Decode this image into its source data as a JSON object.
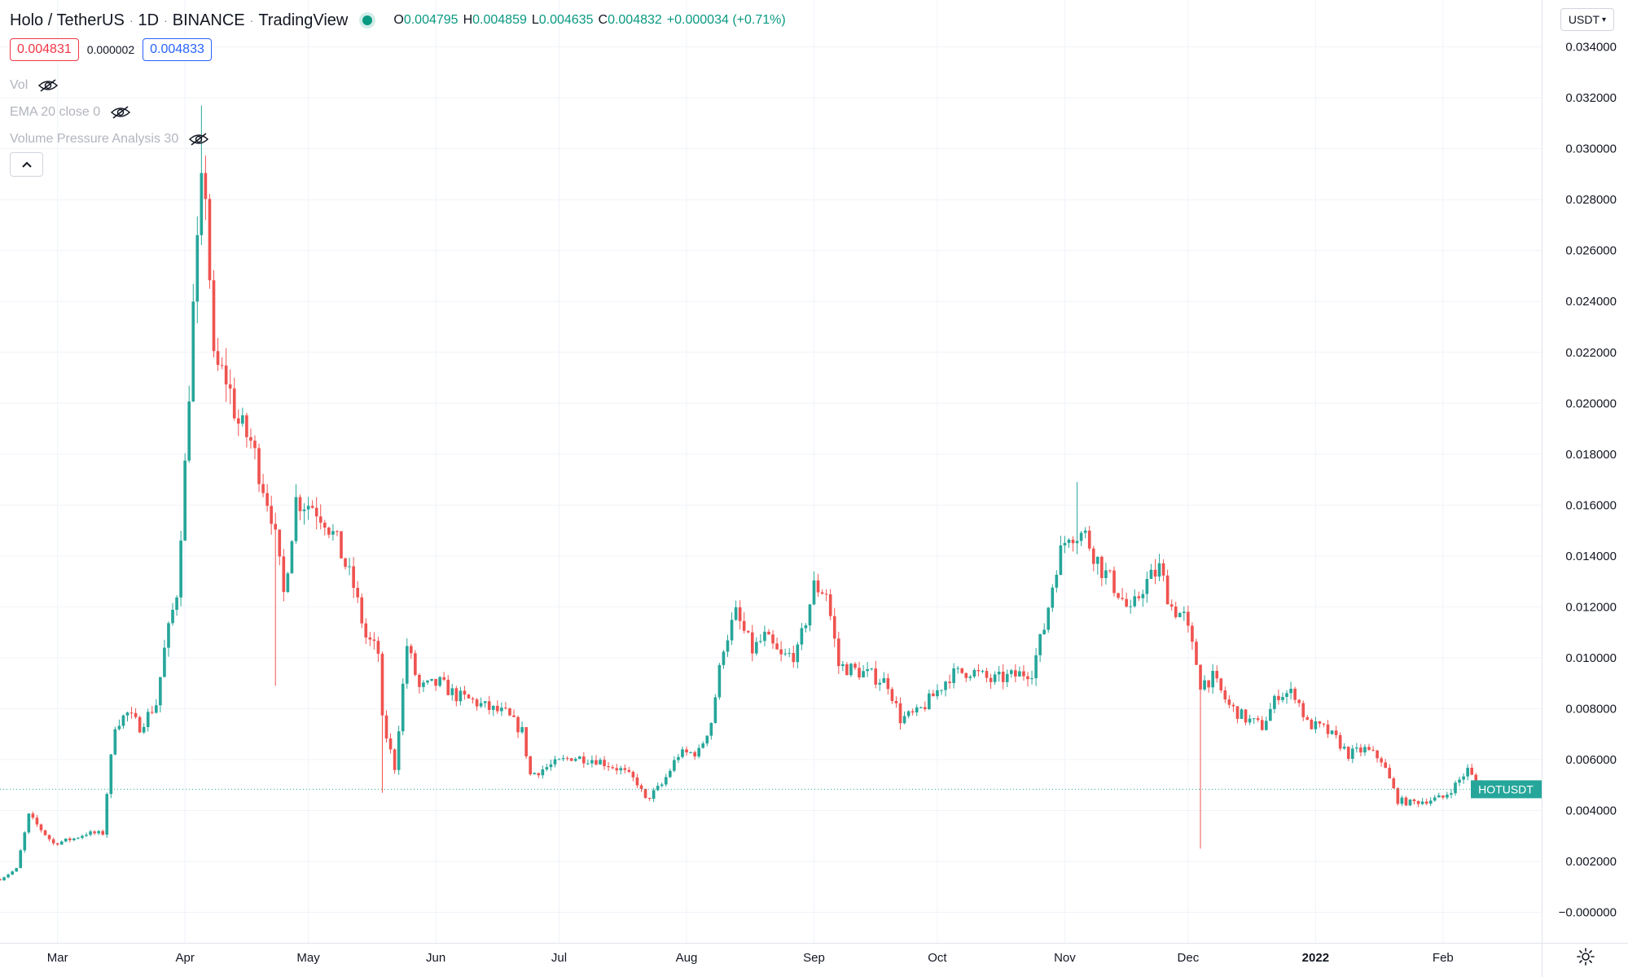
{
  "header": {
    "symbol": "Holo / TetherUS",
    "interval": "1D",
    "exchange": "BINANCE",
    "source": "TradingView",
    "ohlc": [
      {
        "key": "O",
        "value": "0.004795"
      },
      {
        "key": "H",
        "value": "0.004859"
      },
      {
        "key": "L",
        "value": "0.004635"
      },
      {
        "key": "C",
        "value": "0.004832"
      }
    ],
    "change": "+0.000034 (+0.71%)"
  },
  "trade": {
    "sell_price": "0.004831",
    "spread": "0.000002",
    "buy_price": "0.004833"
  },
  "indicators": [
    {
      "label": "Vol"
    },
    {
      "label": "EMA 20 close 0"
    },
    {
      "label": "Volume Pressure Analysis 30"
    }
  ],
  "currency": {
    "selected": "USDT"
  },
  "price_label": {
    "symbol": "HOTUSDT",
    "value": "0.004832"
  },
  "colors": {
    "up": "#26a69a",
    "down": "#ef5350",
    "grid": "#f0f3fa",
    "axis_text": "#131722",
    "live_dot": "#089981",
    "sell_border": "#f23645",
    "buy_border": "#2962ff",
    "last_price_bg": "#26a69a"
  },
  "icons": {
    "indicator_visibility": "eye-off-icon",
    "collapse": "chevron-up-icon",
    "currency_dropdown": "chevron-down-icon",
    "settings": "gear-icon"
  },
  "chart_data": {
    "type": "candlestick",
    "y_tick_labels": [
      "0.034000",
      "0.032000",
      "0.030000",
      "0.028000",
      "0.026000",
      "0.024000",
      "0.022000",
      "0.020000",
      "0.018000",
      "0.016000",
      "0.014000",
      "0.012000",
      "0.010000",
      "0.008000",
      "0.006000",
      "0.004000",
      "0.002000",
      "−0.000000"
    ],
    "y_range": [
      -0.0012,
      0.0345
    ],
    "x_tick_labels": [
      "Mar",
      "Apr",
      "May",
      "Jun",
      "Jul",
      "Aug",
      "Sep",
      "Oct",
      "Nov",
      "Dec",
      "2022",
      "Feb"
    ],
    "x_tick_dates": [
      "2021-03-01",
      "2021-04-01",
      "2021-05-01",
      "2021-06-01",
      "2021-07-01",
      "2021-08-01",
      "2021-09-01",
      "2021-10-01",
      "2021-11-01",
      "2021-12-01",
      "2022-01-01",
      "2022-02-01"
    ],
    "x_range": [
      "2021-02-15",
      "2022-02-25"
    ],
    "last_price": 0.004832,
    "grid": true,
    "price_path": [
      [
        "2021-02-15",
        0.0013
      ],
      [
        "2021-02-19",
        0.0017
      ],
      [
        "2021-02-22",
        0.0038
      ],
      [
        "2021-02-28",
        0.0027
      ],
      [
        "2021-03-05",
        0.0029
      ],
      [
        "2021-03-08",
        0.0031
      ],
      [
        "2021-03-12",
        0.0031
      ],
      [
        "2021-03-13",
        0.0047
      ],
      [
        "2021-03-15",
        0.0074
      ],
      [
        "2021-03-18",
        0.0078
      ],
      [
        "2021-03-21",
        0.0073
      ],
      [
        "2021-03-25",
        0.0082
      ],
      [
        "2021-03-27",
        0.0103
      ],
      [
        "2021-03-30",
        0.0126
      ],
      [
        "2021-04-01",
        0.0175
      ],
      [
        "2021-04-03",
        0.0237
      ],
      [
        "2021-04-05",
        0.0282
      ],
      [
        "2021-04-06",
        0.0285
      ],
      [
        "2021-04-08",
        0.0215
      ],
      [
        "2021-04-11",
        0.021
      ],
      [
        "2021-04-14",
        0.0192
      ],
      [
        "2021-04-17",
        0.0185
      ],
      [
        "2021-04-20",
        0.0168
      ],
      [
        "2021-04-22",
        0.0157
      ],
      [
        "2021-04-25",
        0.0125
      ],
      [
        "2021-04-28",
        0.0162
      ],
      [
        "2021-05-02",
        0.016
      ],
      [
        "2021-05-05",
        0.0155
      ],
      [
        "2021-05-08",
        0.0145
      ],
      [
        "2021-05-12",
        0.0128
      ],
      [
        "2021-05-15",
        0.0108
      ],
      [
        "2021-05-18",
        0.0102
      ],
      [
        "2021-05-19",
        0.0075
      ],
      [
        "2021-05-22",
        0.0057
      ],
      [
        "2021-05-25",
        0.0105
      ],
      [
        "2021-05-28",
        0.0088
      ],
      [
        "2021-06-02",
        0.009
      ],
      [
        "2021-06-06",
        0.0085
      ],
      [
        "2021-06-10",
        0.0083
      ],
      [
        "2021-06-14",
        0.008
      ],
      [
        "2021-06-18",
        0.0078
      ],
      [
        "2021-06-22",
        0.0071
      ],
      [
        "2021-06-24",
        0.0054
      ],
      [
        "2021-06-28",
        0.0057
      ],
      [
        "2021-07-04",
        0.0061
      ],
      [
        "2021-07-10",
        0.006
      ],
      [
        "2021-07-16",
        0.0056
      ],
      [
        "2021-07-20",
        0.0051
      ],
      [
        "2021-07-22",
        0.0044
      ],
      [
        "2021-07-26",
        0.005
      ],
      [
        "2021-07-30",
        0.0062
      ],
      [
        "2021-08-04",
        0.0063
      ],
      [
        "2021-08-07",
        0.0075
      ],
      [
        "2021-08-10",
        0.0105
      ],
      [
        "2021-08-13",
        0.0117
      ],
      [
        "2021-08-17",
        0.0103
      ],
      [
        "2021-08-20",
        0.0108
      ],
      [
        "2021-08-24",
        0.01
      ],
      [
        "2021-08-28",
        0.0102
      ],
      [
        "2021-09-01",
        0.0128
      ],
      [
        "2021-09-04",
        0.0126
      ],
      [
        "2021-09-07",
        0.0097
      ],
      [
        "2021-09-11",
        0.0095
      ],
      [
        "2021-09-15",
        0.0093
      ],
      [
        "2021-09-19",
        0.009
      ],
      [
        "2021-09-22",
        0.0076
      ],
      [
        "2021-09-26",
        0.0078
      ],
      [
        "2021-09-30",
        0.0085
      ],
      [
        "2021-10-04",
        0.0093
      ],
      [
        "2021-10-09",
        0.0095
      ],
      [
        "2021-10-14",
        0.0091
      ],
      [
        "2021-10-20",
        0.0093
      ],
      [
        "2021-10-24",
        0.0095
      ],
      [
        "2021-10-27",
        0.0112
      ],
      [
        "2021-10-30",
        0.0137
      ],
      [
        "2021-11-02",
        0.015
      ],
      [
        "2021-11-06",
        0.0148
      ],
      [
        "2021-11-10",
        0.0135
      ],
      [
        "2021-11-14",
        0.0126
      ],
      [
        "2021-11-17",
        0.0117
      ],
      [
        "2021-11-20",
        0.0128
      ],
      [
        "2021-11-24",
        0.0135
      ],
      [
        "2021-11-27",
        0.012
      ],
      [
        "2021-11-30",
        0.0116
      ],
      [
        "2021-12-03",
        0.0098
      ],
      [
        "2021-12-04",
        0.009
      ],
      [
        "2021-12-07",
        0.0092
      ],
      [
        "2021-12-11",
        0.0081
      ],
      [
        "2021-12-15",
        0.0076
      ],
      [
        "2021-12-19",
        0.0073
      ],
      [
        "2021-12-23",
        0.0086
      ],
      [
        "2021-12-27",
        0.0086
      ],
      [
        "2021-12-30",
        0.0074
      ],
      [
        "2022-01-03",
        0.0072
      ],
      [
        "2022-01-06",
        0.0068
      ],
      [
        "2022-01-09",
        0.0062
      ],
      [
        "2022-01-13",
        0.0064
      ],
      [
        "2022-01-17",
        0.006
      ],
      [
        "2022-01-21",
        0.0044
      ],
      [
        "2022-01-24",
        0.0043
      ],
      [
        "2022-01-28",
        0.0044
      ],
      [
        "2022-02-01",
        0.0045
      ],
      [
        "2022-02-04",
        0.005
      ],
      [
        "2022-02-07",
        0.0056
      ],
      [
        "2022-02-10",
        0.0048
      ]
    ],
    "notable_wicks": [
      {
        "date": "2021-04-05",
        "high": 0.0317
      },
      {
        "date": "2021-04-23",
        "low": 0.0089
      },
      {
        "date": "2021-05-19",
        "low": 0.0047
      },
      {
        "date": "2021-11-04",
        "high": 0.0169
      },
      {
        "date": "2021-12-04",
        "low": 0.0025
      }
    ]
  }
}
